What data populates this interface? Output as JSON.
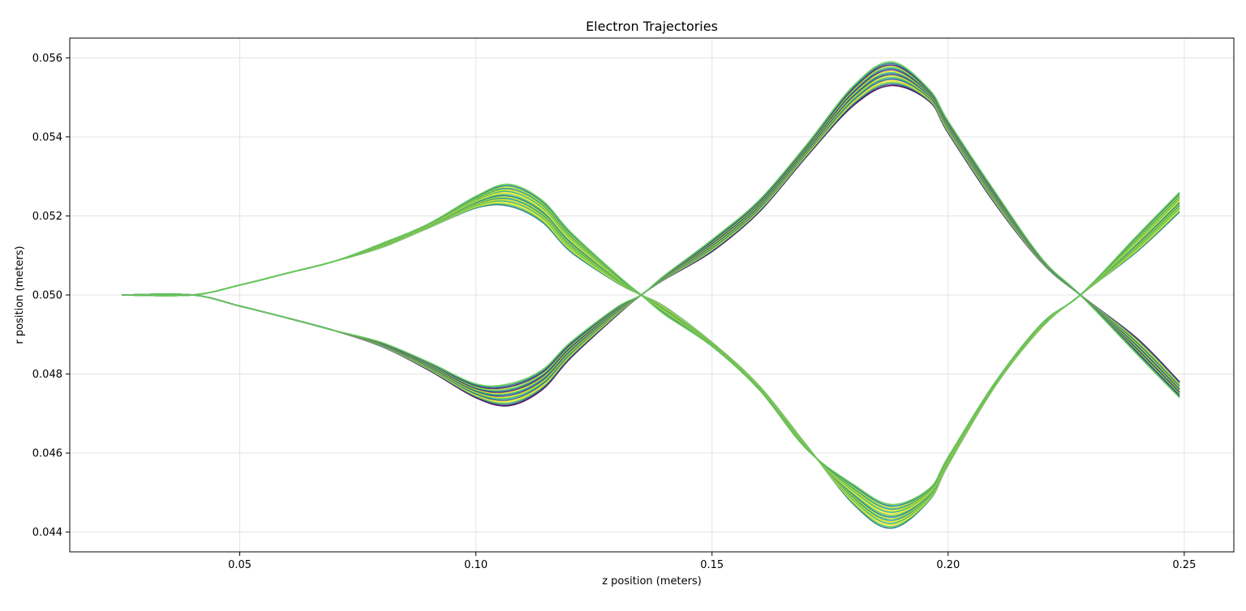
{
  "chart_data": {
    "type": "line",
    "title": "Electron Trajectories",
    "xlabel": "z position (meters)",
    "ylabel": "r position (meters)",
    "xlim": [
      0.014,
      0.2605
    ],
    "ylim": [
      0.0435,
      0.0565
    ],
    "xticks": [
      "0.05",
      "0.10",
      "0.15",
      "0.20",
      "0.25"
    ],
    "yticks": [
      "0.044",
      "0.046",
      "0.048",
      "0.050",
      "0.052",
      "0.054",
      "0.056"
    ],
    "grid": true,
    "colormap": "viridis",
    "groups": [
      {
        "description": "upper-start bundle",
        "x": [
          0.025,
          0.04,
          0.05,
          0.06,
          0.07,
          0.08,
          0.09,
          0.1,
          0.107,
          0.114,
          0.12,
          0.13,
          0.135,
          0.14,
          0.15,
          0.16,
          0.17,
          0.18,
          0.188,
          0.196,
          0.2,
          0.21,
          0.22,
          0.228,
          0.24,
          0.249
        ],
        "y_range_low": [
          0.05,
          0.05,
          0.05025,
          0.05055,
          0.05085,
          0.0512,
          0.0517,
          0.0522,
          0.05225,
          0.05185,
          0.0511,
          0.0503,
          0.05,
          0.0497,
          0.0488,
          0.0477,
          0.0462,
          0.0447,
          0.0441,
          0.0448,
          0.0457,
          0.0477,
          0.0492,
          0.05,
          0.0511,
          0.0521
        ],
        "y_range_high": [
          0.05,
          0.05,
          0.05025,
          0.05055,
          0.05085,
          0.0513,
          0.0518,
          0.0525,
          0.0528,
          0.0524,
          0.0516,
          0.0505,
          0.05,
          0.0495,
          0.0487,
          0.0476,
          0.0461,
          0.0452,
          0.0447,
          0.0451,
          0.0459,
          0.0478,
          0.0493,
          0.05,
          0.0515,
          0.0526
        ]
      },
      {
        "description": "lower-start bundle",
        "x": [
          0.025,
          0.04,
          0.05,
          0.06,
          0.07,
          0.08,
          0.09,
          0.1,
          0.107,
          0.114,
          0.12,
          0.13,
          0.135,
          0.14,
          0.15,
          0.16,
          0.17,
          0.18,
          0.188,
          0.196,
          0.2,
          0.21,
          0.22,
          0.228,
          0.24,
          0.249
        ],
        "y_range_low": [
          0.05,
          0.05,
          0.04972,
          0.04942,
          0.0491,
          0.0487,
          0.0481,
          0.0474,
          0.0472,
          0.0476,
          0.0484,
          0.0495,
          0.05,
          0.0504,
          0.0511,
          0.0521,
          0.0535,
          0.0548,
          0.0553,
          0.0549,
          0.0541,
          0.0523,
          0.0508,
          0.05,
          0.0489,
          0.0478
        ],
        "y_range_high": [
          0.05,
          0.05,
          0.04972,
          0.04942,
          0.0491,
          0.0488,
          0.0483,
          0.04775,
          0.04775,
          0.0481,
          0.0488,
          0.0497,
          0.05,
          0.0505,
          0.0514,
          0.0524,
          0.0538,
          0.0553,
          0.0559,
          0.0552,
          0.0544,
          0.0526,
          0.0509,
          0.05,
          0.0485,
          0.0474
        ]
      }
    ]
  }
}
